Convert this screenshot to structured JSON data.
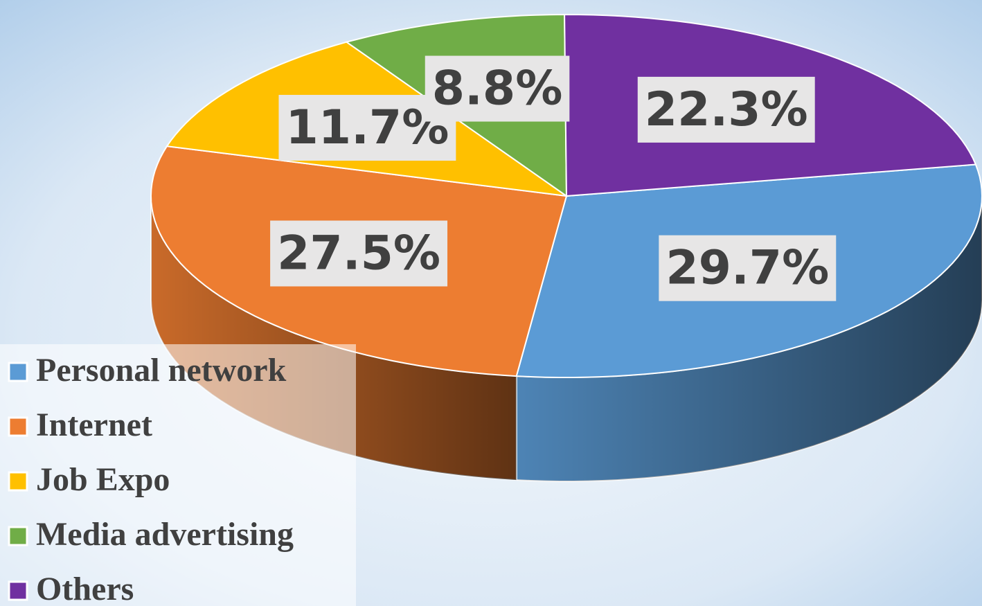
{
  "chart_data": {
    "type": "pie3d",
    "categories": [
      "Personal network",
      "Internet",
      "Job Expo",
      "Media advertising",
      "Others"
    ],
    "values": [
      29.7,
      27.5,
      11.7,
      8.8,
      22.3
    ],
    "value_labels": [
      "29.7%",
      "27.5%",
      "11.7%",
      "8.8%",
      "22.3%"
    ],
    "colors": [
      "#5b9bd5",
      "#ed7d31",
      "#ffc000",
      "#70ad47",
      "#7030a0"
    ],
    "legend": "bottom-left"
  }
}
